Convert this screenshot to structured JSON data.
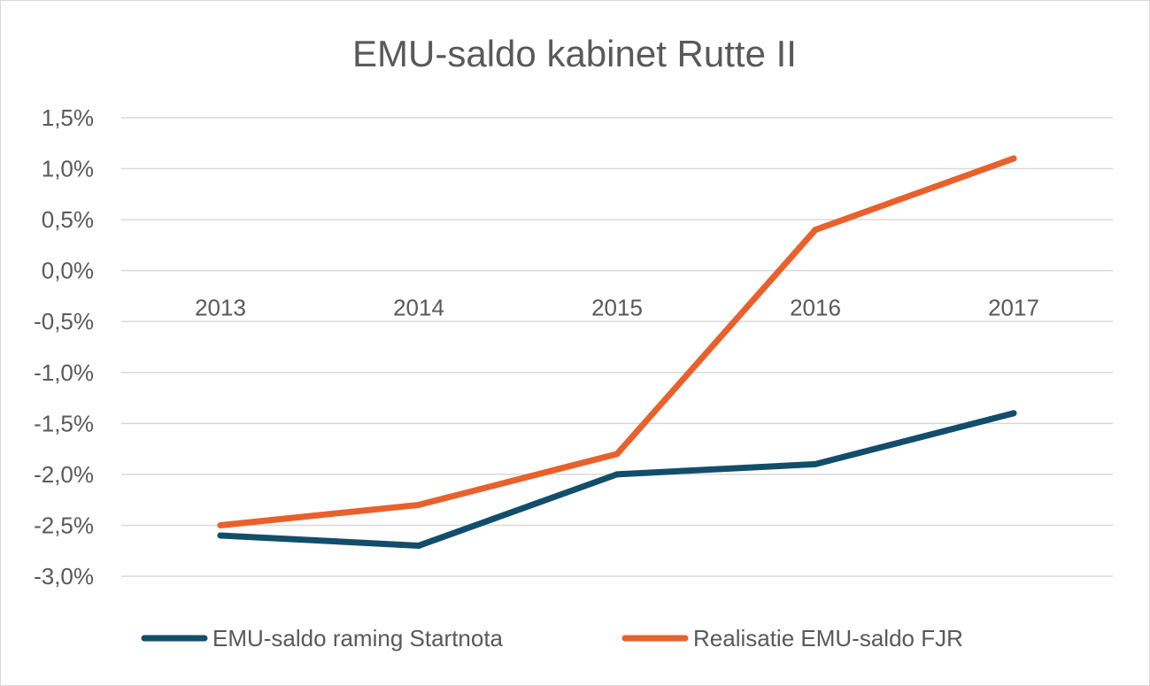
{
  "chart_data": {
    "type": "line",
    "title": "EMU-saldo kabinet Rutte II",
    "xlabel": "",
    "ylabel": "",
    "categories": [
      "2013",
      "2014",
      "2015",
      "2016",
      "2017"
    ],
    "y_ticks": [
      1.5,
      1.0,
      0.5,
      0.0,
      -0.5,
      -1.0,
      -1.5,
      -2.0,
      -2.5,
      -3.0
    ],
    "y_tick_labels": [
      "1,5%",
      "1,0%",
      "0,5%",
      "0,0%",
      "-0,5%",
      "-1,0%",
      "-1,5%",
      "-2,0%",
      "-2,5%",
      "-3,0%"
    ],
    "ylim": [
      -3.0,
      1.5
    ],
    "grid": true,
    "legend": "bottom",
    "series": [
      {
        "name": "EMU-saldo raming Startnota",
        "color": "#124e6b",
        "values": [
          -2.6,
          -2.7,
          -2.0,
          -1.9,
          -1.4
        ]
      },
      {
        "name": "Realisatie EMU-saldo FJR",
        "color": "#e8612c",
        "values": [
          -2.5,
          -2.3,
          -1.8,
          0.4,
          1.1
        ]
      }
    ]
  }
}
